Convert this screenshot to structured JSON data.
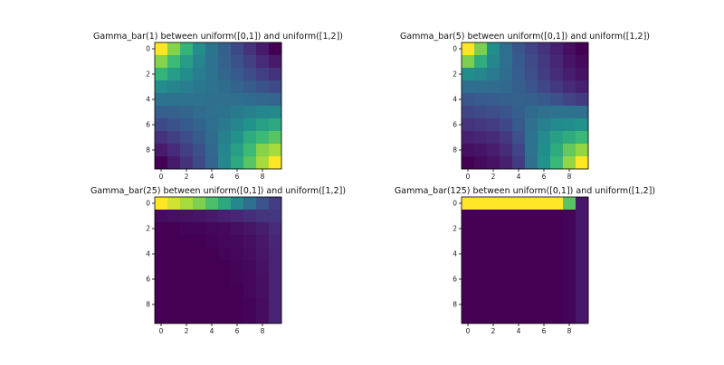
{
  "figure": {
    "background": "#ffffff"
  },
  "chart_data": [
    {
      "type": "heatmap",
      "title": "Gamma_bar(1) between uniform([0,1]) and uniform([1,2])",
      "xlabel": "",
      "ylabel": "",
      "colormap": "viridis",
      "x_ticks": [
        "0",
        "2",
        "4",
        "6",
        "8"
      ],
      "y_ticks": [
        "0",
        "2",
        "4",
        "6",
        "8"
      ],
      "xlim": [
        -0.5,
        9.5
      ],
      "ylim": [
        9.5,
        -0.5
      ],
      "values": [
        [
          1.0,
          0.86,
          0.74,
          0.6,
          0.48,
          0.38,
          0.28,
          0.18,
          0.09,
          0.0
        ],
        [
          0.86,
          0.76,
          0.66,
          0.56,
          0.47,
          0.39,
          0.31,
          0.23,
          0.15,
          0.09
        ],
        [
          0.74,
          0.66,
          0.6,
          0.53,
          0.47,
          0.41,
          0.35,
          0.29,
          0.23,
          0.18
        ],
        [
          0.6,
          0.56,
          0.53,
          0.5,
          0.47,
          0.44,
          0.4,
          0.36,
          0.31,
          0.28
        ],
        [
          0.48,
          0.47,
          0.47,
          0.47,
          0.46,
          0.46,
          0.45,
          0.44,
          0.42,
          0.4
        ],
        [
          0.38,
          0.39,
          0.41,
          0.44,
          0.46,
          0.48,
          0.51,
          0.54,
          0.57,
          0.58
        ],
        [
          0.28,
          0.31,
          0.35,
          0.4,
          0.45,
          0.51,
          0.57,
          0.63,
          0.67,
          0.7
        ],
        [
          0.18,
          0.23,
          0.29,
          0.36,
          0.44,
          0.54,
          0.63,
          0.71,
          0.76,
          0.8
        ],
        [
          0.09,
          0.15,
          0.23,
          0.31,
          0.42,
          0.57,
          0.67,
          0.76,
          0.86,
          0.9
        ],
        [
          0.0,
          0.09,
          0.18,
          0.28,
          0.4,
          0.58,
          0.7,
          0.8,
          0.9,
          1.0
        ]
      ]
    },
    {
      "type": "heatmap",
      "title": "Gamma_bar(5) between uniform([0,1]) and uniform([1,2])",
      "xlabel": "",
      "ylabel": "",
      "colormap": "viridis",
      "x_ticks": [
        "0",
        "2",
        "4",
        "6",
        "8"
      ],
      "y_ticks": [
        "0",
        "2",
        "4",
        "6",
        "8"
      ],
      "xlim": [
        -0.5,
        9.5
      ],
      "ylim": [
        9.5,
        -0.5
      ],
      "values": [
        [
          1.0,
          0.85,
          0.62,
          0.46,
          0.35,
          0.27,
          0.2,
          0.13,
          0.07,
          0.02
        ],
        [
          0.85,
          0.72,
          0.58,
          0.46,
          0.37,
          0.29,
          0.22,
          0.15,
          0.09,
          0.05
        ],
        [
          0.62,
          0.58,
          0.52,
          0.45,
          0.38,
          0.31,
          0.24,
          0.17,
          0.12,
          0.08
        ],
        [
          0.46,
          0.46,
          0.45,
          0.43,
          0.39,
          0.34,
          0.28,
          0.22,
          0.17,
          0.13
        ],
        [
          0.35,
          0.37,
          0.38,
          0.39,
          0.4,
          0.39,
          0.36,
          0.32,
          0.27,
          0.23
        ],
        [
          0.27,
          0.29,
          0.31,
          0.34,
          0.39,
          0.44,
          0.47,
          0.48,
          0.48,
          0.47
        ],
        [
          0.2,
          0.22,
          0.24,
          0.28,
          0.36,
          0.47,
          0.55,
          0.6,
          0.62,
          0.64
        ],
        [
          0.13,
          0.15,
          0.17,
          0.22,
          0.32,
          0.48,
          0.6,
          0.68,
          0.72,
          0.76
        ],
        [
          0.07,
          0.09,
          0.12,
          0.17,
          0.27,
          0.48,
          0.62,
          0.72,
          0.82,
          0.88
        ],
        [
          0.02,
          0.05,
          0.08,
          0.13,
          0.23,
          0.47,
          0.64,
          0.76,
          0.88,
          1.0
        ]
      ]
    },
    {
      "type": "heatmap",
      "title": "Gamma_bar(25) between uniform([0,1]) and uniform([1,2])",
      "xlabel": "",
      "ylabel": "",
      "colormap": "viridis",
      "x_ticks": [
        "0",
        "2",
        "4",
        "6",
        "8"
      ],
      "y_ticks": [
        "0",
        "2",
        "4",
        "6",
        "8"
      ],
      "xlim": [
        -0.5,
        9.5
      ],
      "ylim": [
        9.5,
        -0.5
      ],
      "values": [
        [
          1.0,
          0.95,
          0.9,
          0.85,
          0.78,
          0.7,
          0.58,
          0.45,
          0.33,
          0.22
        ],
        [
          0.04,
          0.05,
          0.06,
          0.07,
          0.09,
          0.11,
          0.13,
          0.16,
          0.19,
          0.2
        ],
        [
          0.0,
          0.0,
          0.01,
          0.01,
          0.02,
          0.03,
          0.05,
          0.07,
          0.1,
          0.15
        ],
        [
          0.0,
          0.0,
          0.0,
          0.0,
          0.01,
          0.02,
          0.03,
          0.05,
          0.08,
          0.13
        ],
        [
          0.0,
          0.0,
          0.0,
          0.0,
          0.0,
          0.01,
          0.02,
          0.04,
          0.07,
          0.12
        ],
        [
          0.0,
          0.0,
          0.0,
          0.0,
          0.0,
          0.0,
          0.01,
          0.03,
          0.06,
          0.12
        ],
        [
          0.0,
          0.0,
          0.0,
          0.0,
          0.0,
          0.0,
          0.01,
          0.02,
          0.05,
          0.12
        ],
        [
          0.0,
          0.0,
          0.0,
          0.0,
          0.0,
          0.0,
          0.0,
          0.02,
          0.05,
          0.12
        ],
        [
          0.0,
          0.0,
          0.0,
          0.0,
          0.0,
          0.0,
          0.0,
          0.01,
          0.04,
          0.12
        ],
        [
          0.0,
          0.0,
          0.0,
          0.0,
          0.0,
          0.0,
          0.0,
          0.01,
          0.04,
          0.12
        ]
      ]
    },
    {
      "type": "heatmap",
      "title": "Gamma_bar(125) between uniform([0,1]) and uniform([1,2])",
      "xlabel": "",
      "ylabel": "",
      "colormap": "viridis",
      "x_ticks": [
        "0",
        "2",
        "4",
        "6",
        "8"
      ],
      "y_ticks": [
        "0",
        "2",
        "4",
        "6",
        "8"
      ],
      "xlim": [
        -0.5,
        9.5
      ],
      "ylim": [
        9.5,
        -0.5
      ],
      "values": [
        [
          1.0,
          1.0,
          1.0,
          1.0,
          1.0,
          1.0,
          1.0,
          1.0,
          0.8,
          0.08
        ],
        [
          0.0,
          0.0,
          0.0,
          0.0,
          0.0,
          0.0,
          0.0,
          0.0,
          0.01,
          0.08
        ],
        [
          0.0,
          0.0,
          0.0,
          0.0,
          0.0,
          0.0,
          0.0,
          0.0,
          0.01,
          0.08
        ],
        [
          0.0,
          0.0,
          0.0,
          0.0,
          0.0,
          0.0,
          0.0,
          0.0,
          0.01,
          0.08
        ],
        [
          0.0,
          0.0,
          0.0,
          0.0,
          0.0,
          0.0,
          0.0,
          0.0,
          0.01,
          0.08
        ],
        [
          0.0,
          0.0,
          0.0,
          0.0,
          0.0,
          0.0,
          0.0,
          0.0,
          0.01,
          0.08
        ],
        [
          0.0,
          0.0,
          0.0,
          0.0,
          0.0,
          0.0,
          0.0,
          0.0,
          0.01,
          0.08
        ],
        [
          0.0,
          0.0,
          0.0,
          0.0,
          0.0,
          0.0,
          0.0,
          0.0,
          0.01,
          0.08
        ],
        [
          0.0,
          0.0,
          0.0,
          0.0,
          0.0,
          0.0,
          0.0,
          0.0,
          0.01,
          0.08
        ],
        [
          0.0,
          0.0,
          0.0,
          0.0,
          0.0,
          0.0,
          0.0,
          0.0,
          0.01,
          0.08
        ]
      ]
    }
  ]
}
